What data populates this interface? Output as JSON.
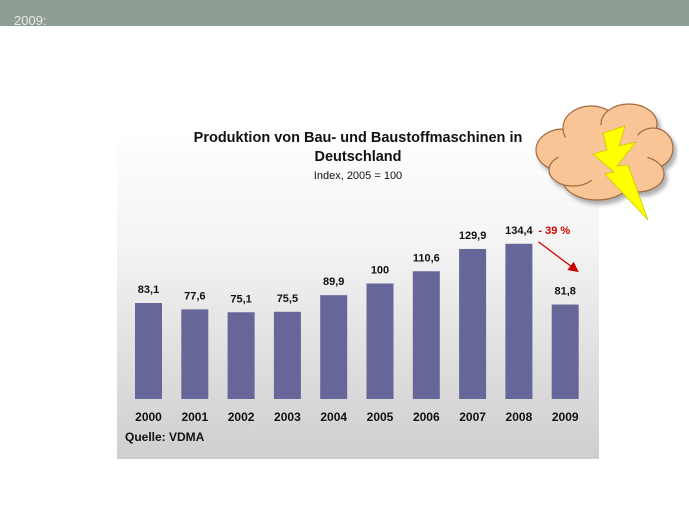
{
  "slide": {
    "header_text": "2009:"
  },
  "chart_data": {
    "type": "bar",
    "title": "Produktion von Bau- und Baustoffmaschinen in Deutschland",
    "subtitle": "Index, 2005 = 100",
    "categories": [
      "2000",
      "2001",
      "2002",
      "2003",
      "2004",
      "2005",
      "2006",
      "2007",
      "2008",
      "2009"
    ],
    "values": [
      83.1,
      77.6,
      75.1,
      75.5,
      89.9,
      100,
      110.6,
      129.9,
      134.4,
      81.8
    ],
    "data_labels": [
      "83,1",
      "77,6",
      "75,1",
      "75,5",
      "89,9",
      "100",
      "110,6",
      "129,9",
      "134,4",
      "81,8"
    ],
    "annotation": "- 39 %",
    "source": "Quelle: VDMA",
    "ylim": [
      0,
      140
    ],
    "bar_color": "#666699",
    "annotation_color": "#cc0000",
    "grid": false,
    "legend": "none"
  }
}
